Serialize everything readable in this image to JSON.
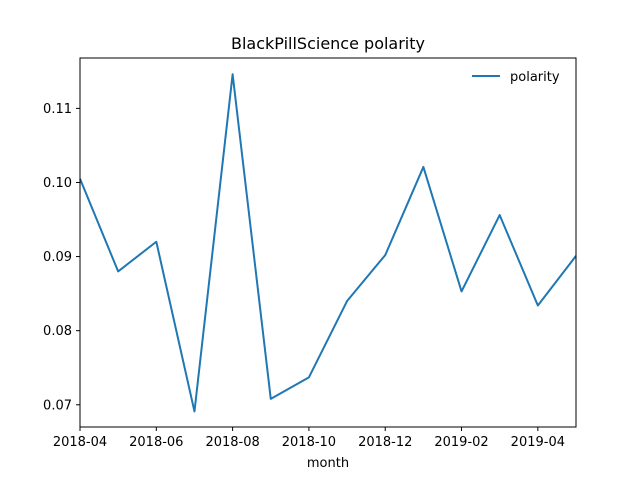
{
  "chart_data": {
    "type": "line",
    "title": "BlackPillScience polarity",
    "xlabel": "month",
    "ylabel": "",
    "x": [
      "2018-04",
      "2018-05",
      "2018-06",
      "2018-07",
      "2018-08",
      "2018-09",
      "2018-10",
      "2018-11",
      "2018-12",
      "2019-01",
      "2019-02",
      "2019-03",
      "2019-04",
      "2019-05"
    ],
    "x_tick_labels": [
      "2018-04",
      "2018-06",
      "2018-08",
      "2018-10",
      "2018-12",
      "2019-02",
      "2019-04"
    ],
    "y_ticks": [
      0.07,
      0.08,
      0.09,
      0.1,
      0.11
    ],
    "y_tick_labels": [
      "0.07",
      "0.08",
      "0.09",
      "0.10",
      "0.11"
    ],
    "ylim": [
      0.067,
      0.1168
    ],
    "xlim": [
      "2018-04",
      "2019-05"
    ],
    "series": [
      {
        "name": "polarity",
        "color": "#1f77b4",
        "values": [
          0.1005,
          0.088,
          0.092,
          0.0691,
          0.1146,
          0.0708,
          0.0737,
          0.084,
          0.0902,
          0.1021,
          0.0853,
          0.0956,
          0.0834,
          0.0901
        ]
      }
    ],
    "legend": {
      "position": "top-right",
      "entries": [
        "polarity"
      ]
    },
    "grid": false
  }
}
